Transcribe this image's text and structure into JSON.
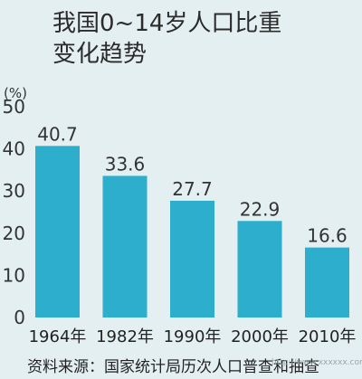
{
  "chart_data": {
    "type": "bar",
    "title_lines": [
      "我国0~14岁人口比重",
      "变化趋势"
    ],
    "unit": "(%)",
    "categories": [
      "1964年",
      "1982年",
      "1990年",
      "2000年",
      "2010年"
    ],
    "values": [
      40.7,
      33.6,
      27.7,
      22.9,
      16.6
    ],
    "data_labels": [
      "40.7",
      "33.6",
      "27.7",
      "22.9",
      "16.6"
    ],
    "ylim": [
      0,
      50
    ],
    "yticks": [
      "0",
      "10",
      "20",
      "30",
      "40",
      "50"
    ],
    "bar_color": "#2eaecd",
    "source": "资料来源：国家统计局历次人口普查和抽查",
    "watermark": "http://www.xxxxxx.com"
  }
}
